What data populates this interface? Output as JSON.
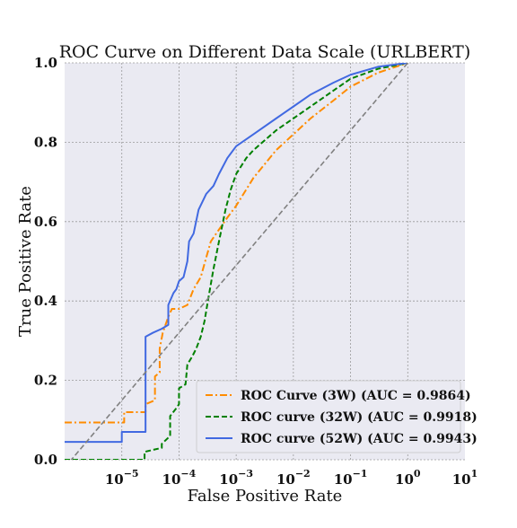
{
  "chart_data": {
    "type": "line",
    "title": "ROC Curve on Different Data Scale (URLBERT)",
    "xlabel": "False Positive Rate",
    "ylabel": "True Positive Rate",
    "x_scale": "log",
    "xlim": [
      1e-06,
      10
    ],
    "ylim": [
      0,
      1
    ],
    "grid": true,
    "legend_position": "lower-right",
    "x_ticks": [
      {
        "base": "10",
        "exp": "−5"
      },
      {
        "base": "10",
        "exp": "−4"
      },
      {
        "base": "10",
        "exp": "−3"
      },
      {
        "base": "10",
        "exp": "−2"
      },
      {
        "base": "10",
        "exp": "−1"
      },
      {
        "base": "10",
        "exp": "0"
      },
      {
        "base": "10",
        "exp": "1"
      }
    ],
    "y_ticks": [
      "0.0",
      "0.2",
      "0.4",
      "0.6",
      "0.8",
      "1.0"
    ],
    "series": [
      {
        "name": "ROC Curve (3W) (AUC = 0.9864)",
        "color": "#ff8c00",
        "dash": "dashdot",
        "points": [
          [
            1e-06,
            0.094
          ],
          [
            2e-06,
            0.094
          ],
          [
            5e-06,
            0.094
          ],
          [
            1.1e-05,
            0.094
          ],
          [
            1.1e-05,
            0.12
          ],
          [
            2.6e-05,
            0.12
          ],
          [
            2.6e-05,
            0.14
          ],
          [
            3.8e-05,
            0.15
          ],
          [
            3.8e-05,
            0.21
          ],
          [
            4.6e-05,
            0.22
          ],
          [
            4.6e-05,
            0.28
          ],
          [
            5.2e-05,
            0.32
          ],
          [
            6.5e-05,
            0.36
          ],
          [
            7.5e-05,
            0.38
          ],
          [
            0.0001,
            0.38
          ],
          [
            0.00014,
            0.39
          ],
          [
            0.00018,
            0.43
          ],
          [
            0.00024,
            0.46
          ],
          [
            0.0003,
            0.51
          ],
          [
            0.00036,
            0.55
          ],
          [
            0.0005,
            0.58
          ],
          [
            0.0007,
            0.61
          ],
          [
            0.001,
            0.64
          ],
          [
            0.002,
            0.71
          ],
          [
            0.005,
            0.78
          ],
          [
            0.01,
            0.82
          ],
          [
            0.02,
            0.86
          ],
          [
            0.05,
            0.905
          ],
          [
            0.1,
            0.94
          ],
          [
            0.3,
            0.975
          ],
          [
            1,
            1.0
          ]
        ]
      },
      {
        "name": "ROC curve (32W) (AUC = 0.9918)",
        "color": "#008000",
        "dash": "dashed",
        "points": [
          [
            1e-06,
            0.0
          ],
          [
            1e-05,
            0.0
          ],
          [
            2.5e-05,
            0.0
          ],
          [
            2.5e-05,
            0.02
          ],
          [
            5e-05,
            0.03
          ],
          [
            5e-05,
            0.04
          ],
          [
            7e-05,
            0.06
          ],
          [
            7e-05,
            0.11
          ],
          [
            9e-05,
            0.13
          ],
          [
            0.0001,
            0.14
          ],
          [
            0.0001,
            0.18
          ],
          [
            0.00013,
            0.19
          ],
          [
            0.00014,
            0.24
          ],
          [
            0.00017,
            0.26
          ],
          [
            0.0002,
            0.28
          ],
          [
            0.00024,
            0.31
          ],
          [
            0.00028,
            0.35
          ],
          [
            0.00032,
            0.4
          ],
          [
            0.0004,
            0.48
          ],
          [
            0.0005,
            0.55
          ],
          [
            0.00065,
            0.63
          ],
          [
            0.0008,
            0.68
          ],
          [
            0.001,
            0.72
          ],
          [
            0.0015,
            0.76
          ],
          [
            0.002,
            0.78
          ],
          [
            0.005,
            0.83
          ],
          [
            0.01,
            0.86
          ],
          [
            0.02,
            0.89
          ],
          [
            0.05,
            0.93
          ],
          [
            0.1,
            0.96
          ],
          [
            0.3,
            0.985
          ],
          [
            1,
            1.0
          ]
        ]
      },
      {
        "name": "ROC curve (52W) (AUC = 0.9943)",
        "color": "#4169e1",
        "dash": "solid",
        "points": [
          [
            1e-06,
            0.045
          ],
          [
            1e-05,
            0.045
          ],
          [
            1e-05,
            0.07
          ],
          [
            2.6e-05,
            0.07
          ],
          [
            2.6e-05,
            0.31
          ],
          [
            3.5e-05,
            0.32
          ],
          [
            5e-05,
            0.33
          ],
          [
            6.5e-05,
            0.34
          ],
          [
            6.5e-05,
            0.39
          ],
          [
            8e-05,
            0.42
          ],
          [
            9e-05,
            0.43
          ],
          [
            0.0001,
            0.45
          ],
          [
            0.00012,
            0.46
          ],
          [
            0.00014,
            0.5
          ],
          [
            0.00015,
            0.55
          ],
          [
            0.00018,
            0.57
          ],
          [
            0.00022,
            0.63
          ],
          [
            0.0003,
            0.67
          ],
          [
            0.0004,
            0.69
          ],
          [
            0.0005,
            0.72
          ],
          [
            0.0007,
            0.76
          ],
          [
            0.001,
            0.79
          ],
          [
            0.002,
            0.82
          ],
          [
            0.005,
            0.86
          ],
          [
            0.01,
            0.89
          ],
          [
            0.02,
            0.92
          ],
          [
            0.05,
            0.95
          ],
          [
            0.1,
            0.97
          ],
          [
            0.3,
            0.99
          ],
          [
            1,
            1.0
          ]
        ]
      },
      {
        "name": "",
        "color": "#808080",
        "dash": "dashed",
        "points": [
          [
            1e-06,
            -0.02
          ],
          [
            1,
            1.0
          ]
        ]
      }
    ]
  }
}
